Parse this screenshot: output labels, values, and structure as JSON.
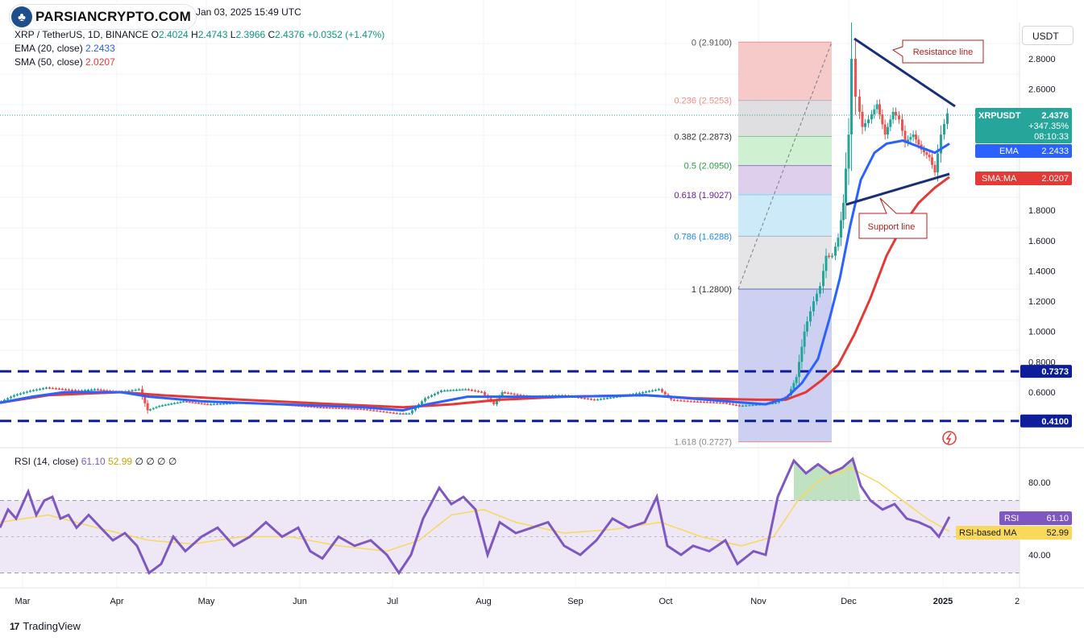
{
  "header": {
    "date": "Jan 03, 2025 15:49 UTC",
    "symbol": "XRP / TetherUS, 1D, BINANCE",
    "ohlc": {
      "o_label": "O",
      "o": "2.4024",
      "h_label": "H",
      "h": "2.4743",
      "l_label": "L",
      "l": "2.3966",
      "c_label": "C",
      "c": "2.4376",
      "change": "+0.0352 (+1.47%)"
    },
    "ema_label": "EMA (20, close)",
    "ema_value": "2.2433",
    "sma_label": "SMA (50, close)",
    "sma_value": "2.0207",
    "rsi_label": "RSI (14, close)",
    "rsi_value": "61.10",
    "rsi_ma_value": "52.99",
    "rsi_extra": "∅ ∅ ∅ ∅"
  },
  "logo_text": "PARSIANCRYPTO.COM",
  "logo_icon": "tree-icon",
  "footer_brand": "TradingView",
  "currency_button": "USDT",
  "chart_data": [
    {
      "type": "candlestick",
      "title": "XRP / TetherUS, 1D, BINANCE",
      "x_labels": [
        "Mar",
        "Apr",
        "May",
        "Jun",
        "Jul",
        "Aug",
        "Sep",
        "Oct",
        "Nov",
        "Dec",
        "2025",
        "2"
      ],
      "y_ticks": [
        2.8,
        2.6,
        1.8,
        1.6,
        1.4,
        1.2,
        1.0,
        0.8,
        0.6
      ],
      "y_tick_labels": [
        "2.8000",
        "2.6000",
        "1.8000",
        "1.6000",
        "1.4000",
        "1.2000",
        "1.0000",
        "0.8000",
        "0.6000"
      ],
      "ylim": [
        0.2727,
        2.91
      ],
      "price_points": [
        [
          0,
          0.53
        ],
        [
          20,
          0.58
        ],
        [
          40,
          0.61
        ],
        [
          60,
          0.63
        ],
        [
          80,
          0.62
        ],
        [
          100,
          0.61
        ],
        [
          120,
          0.62
        ],
        [
          150,
          0.6
        ],
        [
          175,
          0.62
        ],
        [
          185,
          0.48
        ],
        [
          200,
          0.51
        ],
        [
          230,
          0.54
        ],
        [
          260,
          0.52
        ],
        [
          300,
          0.53
        ],
        [
          350,
          0.52
        ],
        [
          400,
          0.5
        ],
        [
          450,
          0.49
        ],
        [
          495,
          0.46
        ],
        [
          510,
          0.46
        ],
        [
          530,
          0.56
        ],
        [
          550,
          0.61
        ],
        [
          580,
          0.62
        ],
        [
          600,
          0.6
        ],
        [
          615,
          0.52
        ],
        [
          625,
          0.6
        ],
        [
          660,
          0.57
        ],
        [
          700,
          0.58
        ],
        [
          740,
          0.55
        ],
        [
          780,
          0.58
        ],
        [
          820,
          0.62
        ],
        [
          835,
          0.55
        ],
        [
          860,
          0.54
        ],
        [
          900,
          0.53
        ],
        [
          920,
          0.51
        ],
        [
          945,
          0.52
        ],
        [
          965,
          0.53
        ],
        [
          980,
          0.58
        ],
        [
          990,
          0.7
        ],
        [
          1000,
          1.0
        ],
        [
          1012,
          1.2
        ],
        [
          1020,
          1.3
        ],
        [
          1027,
          1.5
        ],
        [
          1035,
          1.5
        ],
        [
          1042,
          1.62
        ],
        [
          1048,
          1.85
        ],
        [
          1055,
          2.3
        ],
        [
          1060,
          2.8
        ],
        [
          1065,
          2.55
        ],
        [
          1072,
          2.35
        ],
        [
          1080,
          2.4
        ],
        [
          1090,
          2.5
        ],
        [
          1100,
          2.3
        ],
        [
          1110,
          2.45
        ],
        [
          1118,
          2.4
        ],
        [
          1125,
          2.25
        ],
        [
          1135,
          2.3
        ],
        [
          1145,
          2.2
        ],
        [
          1155,
          2.15
        ],
        [
          1162,
          2.05
        ],
        [
          1170,
          2.3
        ],
        [
          1178,
          2.44
        ]
      ],
      "ema_points": [
        [
          0,
          0.53
        ],
        [
          40,
          0.57
        ],
        [
          80,
          0.6
        ],
        [
          150,
          0.6
        ],
        [
          185,
          0.57
        ],
        [
          250,
          0.54
        ],
        [
          350,
          0.52
        ],
        [
          450,
          0.5
        ],
        [
          500,
          0.48
        ],
        [
          530,
          0.52
        ],
        [
          580,
          0.57
        ],
        [
          620,
          0.57
        ],
        [
          700,
          0.57
        ],
        [
          800,
          0.58
        ],
        [
          830,
          0.57
        ],
        [
          900,
          0.54
        ],
        [
          950,
          0.52
        ],
        [
          975,
          0.56
        ],
        [
          995,
          0.66
        ],
        [
          1015,
          0.82
        ],
        [
          1030,
          1.1
        ],
        [
          1042,
          1.35
        ],
        [
          1055,
          1.7
        ],
        [
          1068,
          2.0
        ],
        [
          1085,
          2.18
        ],
        [
          1100,
          2.24
        ],
        [
          1120,
          2.26
        ],
        [
          1140,
          2.22
        ],
        [
          1160,
          2.18
        ],
        [
          1178,
          2.24
        ]
      ],
      "sma_points": [
        [
          0,
          0.53
        ],
        [
          60,
          0.58
        ],
        [
          150,
          0.6
        ],
        [
          200,
          0.58
        ],
        [
          300,
          0.55
        ],
        [
          420,
          0.52
        ],
        [
          500,
          0.5
        ],
        [
          560,
          0.52
        ],
        [
          620,
          0.55
        ],
        [
          700,
          0.57
        ],
        [
          800,
          0.58
        ],
        [
          860,
          0.56
        ],
        [
          940,
          0.55
        ],
        [
          975,
          0.55
        ],
        [
          1000,
          0.6
        ],
        [
          1020,
          0.68
        ],
        [
          1040,
          0.78
        ],
        [
          1060,
          0.98
        ],
        [
          1080,
          1.22
        ],
        [
          1100,
          1.5
        ],
        [
          1120,
          1.7
        ],
        [
          1140,
          1.85
        ],
        [
          1160,
          1.95
        ],
        [
          1178,
          2.02
        ]
      ],
      "fib_levels": [
        {
          "ratio": "0",
          "price": 2.91,
          "label": "0 (2.9100)",
          "color": "#f28b82",
          "text_color": "#555555"
        },
        {
          "ratio": "0.236",
          "price": 2.5253,
          "label": "0.236 (2.5253)",
          "color": "#b2b5be",
          "text_color": "#f28b82"
        },
        {
          "ratio": "0.382",
          "price": 2.2873,
          "label": "0.382 (2.2873)",
          "color": "#81c995",
          "text_color": "#333333"
        },
        {
          "ratio": "0.5",
          "price": 2.095,
          "label": "0.5 (2.0950)",
          "color": "#9575cd",
          "text_color": "#2e9e3e"
        },
        {
          "ratio": "0.618",
          "price": 1.9027,
          "label": "0.618 (1.9027)",
          "color": "#81d4fa",
          "text_color": "#6a1b9a"
        },
        {
          "ratio": "0.786",
          "price": 1.6288,
          "label": "0.786 (1.6288)",
          "color": "#b2b5be",
          "text_color": "#1e88e5"
        },
        {
          "ratio": "1",
          "price": 1.28,
          "label": "1 (1.2800)",
          "color": "#5c6bc0",
          "text_color": "#333333"
        },
        {
          "ratio": "1.618",
          "price": 0.2727,
          "label": "1.618 (0.2727)",
          "color": "#f28b82",
          "text_color": "#888888"
        }
      ],
      "horizontal_levels": [
        {
          "price": 0.7373,
          "label": "0.7373"
        },
        {
          "price": 0.41,
          "label": "0.4100"
        }
      ],
      "annotations": [
        {
          "text": "Resistance line"
        },
        {
          "text": "Support line"
        }
      ],
      "price_labels": {
        "symbol": "XRPUSDT",
        "last": "2.4376",
        "change_pct": "+347.35%",
        "countdown": "08:10:33",
        "ema_tag": "EMA",
        "ema": "2.2433",
        "sma_tag": "SMA:MA",
        "sma": "2.0207"
      },
      "colors": {
        "up": "#26a69a",
        "down": "#ef5350",
        "ema": "#2962ff",
        "sma": "#e53935",
        "fib_trend": "#787b86",
        "level_line": "#0d1d9c",
        "trend_line": "#1a2f7a",
        "annotation": "#b71c1c",
        "last_price": "#26a69a"
      }
    },
    {
      "type": "line",
      "title": "RSI (14, close)",
      "y_ticks": [
        80,
        40
      ],
      "y_tick_labels": [
        "80.00",
        "40.00"
      ],
      "ylim": [
        20,
        100
      ],
      "band": [
        30,
        70
      ],
      "rsi_points": [
        [
          0,
          55
        ],
        [
          10,
          65
        ],
        [
          20,
          60
        ],
        [
          35,
          75
        ],
        [
          45,
          62
        ],
        [
          55,
          70
        ],
        [
          65,
          72
        ],
        [
          75,
          60
        ],
        [
          85,
          62
        ],
        [
          95,
          55
        ],
        [
          110,
          62
        ],
        [
          125,
          55
        ],
        [
          140,
          48
        ],
        [
          155,
          52
        ],
        [
          170,
          45
        ],
        [
          185,
          30
        ],
        [
          200,
          35
        ],
        [
          215,
          50
        ],
        [
          230,
          42
        ],
        [
          250,
          50
        ],
        [
          270,
          55
        ],
        [
          290,
          45
        ],
        [
          310,
          50
        ],
        [
          330,
          58
        ],
        [
          350,
          50
        ],
        [
          370,
          55
        ],
        [
          385,
          42
        ],
        [
          400,
          38
        ],
        [
          420,
          50
        ],
        [
          440,
          45
        ],
        [
          460,
          48
        ],
        [
          480,
          40
        ],
        [
          495,
          30
        ],
        [
          510,
          40
        ],
        [
          525,
          60
        ],
        [
          545,
          77
        ],
        [
          560,
          68
        ],
        [
          575,
          72
        ],
        [
          590,
          65
        ],
        [
          605,
          40
        ],
        [
          620,
          58
        ],
        [
          640,
          52
        ],
        [
          660,
          55
        ],
        [
          680,
          58
        ],
        [
          700,
          45
        ],
        [
          720,
          40
        ],
        [
          740,
          48
        ],
        [
          760,
          60
        ],
        [
          780,
          55
        ],
        [
          800,
          58
        ],
        [
          815,
          72
        ],
        [
          828,
          45
        ],
        [
          845,
          40
        ],
        [
          860,
          45
        ],
        [
          880,
          42
        ],
        [
          900,
          48
        ],
        [
          915,
          35
        ],
        [
          935,
          42
        ],
        [
          950,
          40
        ],
        [
          965,
          72
        ],
        [
          985,
          92
        ],
        [
          1000,
          85
        ],
        [
          1015,
          90
        ],
        [
          1030,
          85
        ],
        [
          1045,
          88
        ],
        [
          1058,
          93
        ],
        [
          1068,
          78
        ],
        [
          1080,
          70
        ],
        [
          1095,
          65
        ],
        [
          1110,
          68
        ],
        [
          1125,
          60
        ],
        [
          1140,
          58
        ],
        [
          1155,
          55
        ],
        [
          1165,
          50
        ],
        [
          1178,
          61
        ]
      ],
      "rsi_ma_points": [
        [
          0,
          58
        ],
        [
          60,
          62
        ],
        [
          120,
          55
        ],
        [
          185,
          48
        ],
        [
          240,
          46
        ],
        [
          300,
          50
        ],
        [
          360,
          50
        ],
        [
          420,
          45
        ],
        [
          480,
          42
        ],
        [
          520,
          48
        ],
        [
          560,
          62
        ],
        [
          600,
          65
        ],
        [
          640,
          58
        ],
        [
          700,
          52
        ],
        [
          760,
          54
        ],
        [
          820,
          58
        ],
        [
          870,
          50
        ],
        [
          920,
          45
        ],
        [
          960,
          50
        ],
        [
          990,
          70
        ],
        [
          1020,
          82
        ],
        [
          1055,
          88
        ],
        [
          1090,
          80
        ],
        [
          1120,
          70
        ],
        [
          1150,
          60
        ],
        [
          1178,
          53
        ]
      ],
      "labels": {
        "rsi_tag": "RSI",
        "rsi": "61.10",
        "ma_tag": "RSI-based MA",
        "ma": "52.99"
      },
      "colors": {
        "rsi": "#7e57c2",
        "ma": "#f9d85a",
        "band": "#ede7f6",
        "overbought_fill": "#a5d6a7"
      }
    }
  ]
}
